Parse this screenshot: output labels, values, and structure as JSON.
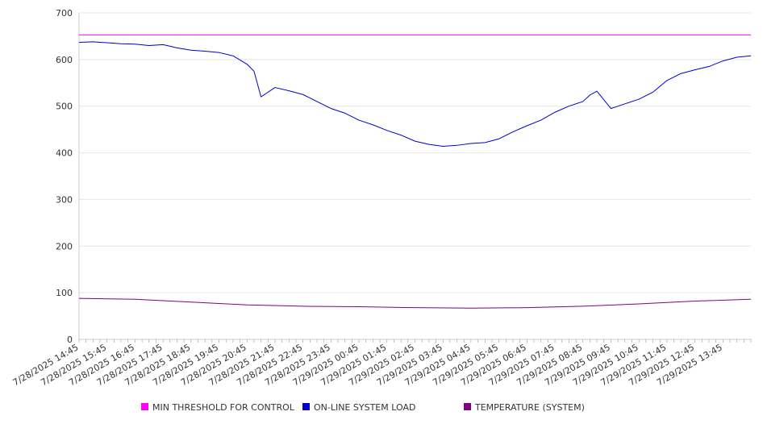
{
  "chart_data": {
    "type": "line",
    "title": "",
    "xlabel": "",
    "ylabel": "",
    "ylim": [
      0,
      700
    ],
    "yticks": [
      0,
      100,
      200,
      300,
      400,
      500,
      600,
      700
    ],
    "xticks": [
      "7/28/2025 14:45",
      "7/28/2025 15:45",
      "7/28/2025 16:45",
      "7/28/2025 17:45",
      "7/28/2025 18:45",
      "7/28/2025 19:45",
      "7/28/2025 20:45",
      "7/28/2025 21:45",
      "7/28/2025 22:45",
      "7/28/2025 23:45",
      "7/29/2025 00:45",
      "7/29/2025 01:45",
      "7/29/2025 02:45",
      "7/29/2025 03:45",
      "7/29/2025 04:45",
      "7/29/2025 05:45",
      "7/29/2025 06:45",
      "7/29/2025 07:45",
      "7/29/2025 08:45",
      "7/29/2025 09:45",
      "7/29/2025 10:45",
      "7/29/2025 11:45",
      "7/29/2025 12:45",
      "7/29/2025 13:45"
    ],
    "x_start": "7/28/2025 14:45",
    "x_end": "7/29/2025 14:45",
    "grid": true,
    "legend_position": "bottom",
    "series": [
      {
        "name": "MIN THRESHOLD FOR CONTROL",
        "color": "#ff00ff",
        "times": [
          "7/28/2025 14:45",
          "7/29/2025 14:45"
        ],
        "values": [
          653,
          653
        ]
      },
      {
        "name": "ON-LINE SYSTEM LOAD",
        "color": "#0000cc",
        "times": [
          "7/28/2025 14:45",
          "7/28/2025 15:15",
          "7/28/2025 15:45",
          "7/28/2025 16:15",
          "7/28/2025 16:45",
          "7/28/2025 17:15",
          "7/28/2025 17:45",
          "7/28/2025 18:15",
          "7/28/2025 18:45",
          "7/28/2025 19:15",
          "7/28/2025 19:45",
          "7/28/2025 20:15",
          "7/28/2025 20:45",
          "7/28/2025 21:00",
          "7/28/2025 21:15",
          "7/28/2025 21:45",
          "7/28/2025 22:15",
          "7/28/2025 22:45",
          "7/28/2025 23:15",
          "7/28/2025 23:45",
          "7/29/2025 00:15",
          "7/29/2025 00:45",
          "7/29/2025 01:15",
          "7/29/2025 01:45",
          "7/29/2025 02:15",
          "7/29/2025 02:45",
          "7/29/2025 03:15",
          "7/29/2025 03:45",
          "7/29/2025 04:15",
          "7/29/2025 04:45",
          "7/29/2025 05:15",
          "7/29/2025 05:45",
          "7/29/2025 06:15",
          "7/29/2025 06:45",
          "7/29/2025 07:15",
          "7/29/2025 07:45",
          "7/29/2025 08:15",
          "7/29/2025 08:45",
          "7/29/2025 09:00",
          "7/29/2025 09:15",
          "7/29/2025 09:45",
          "7/29/2025 10:15",
          "7/29/2025 10:45",
          "7/29/2025 11:15",
          "7/29/2025 11:45",
          "7/29/2025 12:15",
          "7/29/2025 12:45",
          "7/29/2025 13:15",
          "7/29/2025 13:45",
          "7/29/2025 14:15",
          "7/29/2025 14:45"
        ],
        "values": [
          637,
          638,
          636,
          634,
          633,
          630,
          632,
          625,
          620,
          618,
          615,
          608,
          590,
          575,
          520,
          540,
          533,
          525,
          510,
          495,
          485,
          470,
          460,
          448,
          438,
          425,
          418,
          414,
          416,
          420,
          422,
          430,
          445,
          458,
          470,
          487,
          500,
          510,
          524,
          532,
          495,
          505,
          515,
          530,
          555,
          570,
          578,
          585,
          597,
          605,
          608
        ]
      },
      {
        "name": "TEMPERATURE (SYSTEM)",
        "color": "#800080",
        "times": [
          "7/28/2025 14:45",
          "7/28/2025 16:45",
          "7/28/2025 18:45",
          "7/28/2025 20:45",
          "7/28/2025 22:45",
          "7/29/2025 00:45",
          "7/29/2025 02:45",
          "7/29/2025 04:45",
          "7/29/2025 06:45",
          "7/29/2025 08:45",
          "7/29/2025 10:45",
          "7/29/2025 12:45",
          "7/29/2025 14:45"
        ],
        "values": [
          88,
          86,
          80,
          74,
          71,
          70,
          68,
          67,
          68,
          71,
          76,
          82,
          86
        ]
      }
    ]
  }
}
